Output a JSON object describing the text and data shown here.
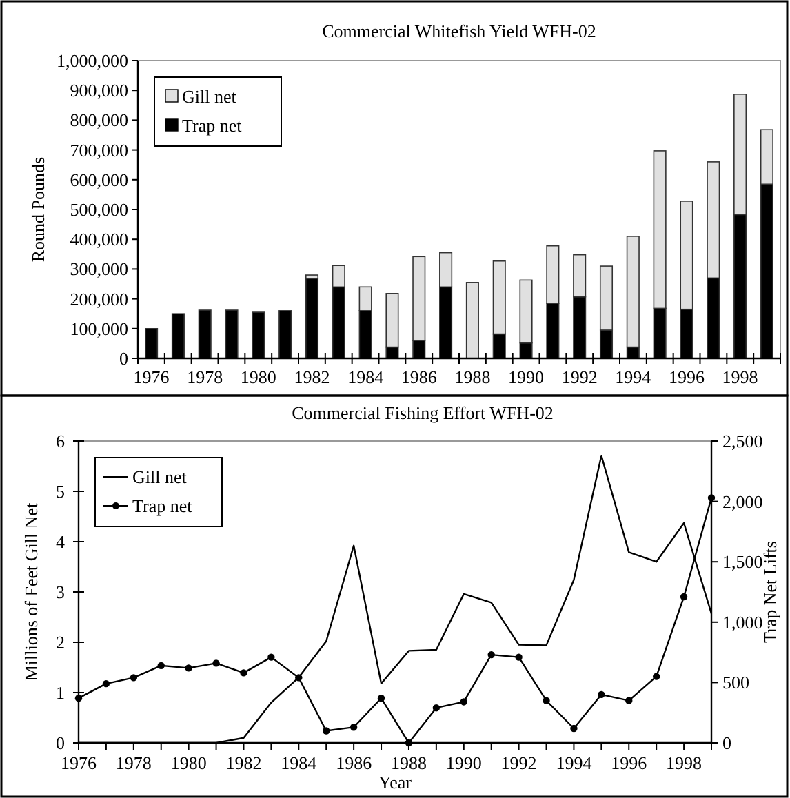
{
  "chart_data": [
    {
      "type": "bar",
      "title": "Commercial Whitefish Yield WFH-02",
      "ylabel": "Round Pounds",
      "stacked": true,
      "legend": "top left",
      "categories": [
        "1976",
        null,
        "1978",
        null,
        "1980",
        null,
        "1982",
        null,
        "1984",
        null,
        "1986",
        null,
        "1988",
        null,
        "1990",
        null,
        "1992",
        null,
        "1994",
        null,
        "1996",
        null,
        "1998",
        null
      ],
      "ylim": [
        0,
        1000000
      ],
      "yticks": [
        {
          "value": 0,
          "label": "0"
        },
        {
          "value": 100000,
          "label": "100,000"
        },
        {
          "value": 200000,
          "label": "200,000"
        },
        {
          "value": 300000,
          "label": "300,000"
        },
        {
          "value": 400000,
          "label": "400,000"
        },
        {
          "value": 500000,
          "label": "500,000"
        },
        {
          "value": 600000,
          "label": "600,000"
        },
        {
          "value": 700000,
          "label": "700,000"
        },
        {
          "value": 800000,
          "label": "800,000"
        },
        {
          "value": 900000,
          "label": "900,000"
        },
        {
          "value": 1000000,
          "label": "1,000,000"
        }
      ],
      "series": [
        {
          "name": "Trap net",
          "color": "#000000",
          "values": [
            100000,
            150000,
            162000,
            162000,
            155000,
            160000,
            268000,
            240000,
            160000,
            38000,
            60000,
            240000,
            0,
            82000,
            52000,
            185000,
            207000,
            95000,
            38000,
            168000,
            165000,
            270000,
            483000,
            585000
          ]
        },
        {
          "name": "Gill net",
          "color": "#e0e0e0",
          "values": [
            0,
            0,
            0,
            0,
            0,
            0,
            12000,
            72000,
            80000,
            180000,
            282000,
            115000,
            255000,
            245000,
            211000,
            193000,
            141000,
            215000,
            372000,
            529000,
            363000,
            390000,
            404000,
            183000
          ]
        }
      ]
    },
    {
      "type": "line",
      "title": "Commercial Fishing Effort WFH-02",
      "xlabel": "Year",
      "ylabel": "Millions of Feet Gill Net",
      "y2label": "Trap Net Lifts",
      "legend": "top left",
      "x": [
        1976,
        1977,
        1978,
        1979,
        1980,
        1981,
        1982,
        1983,
        1984,
        1985,
        1986,
        1987,
        1988,
        1989,
        1990,
        1991,
        1992,
        1993,
        1994,
        1995,
        1996,
        1997,
        1998,
        1999
      ],
      "xlim": [
        1976,
        1999
      ],
      "xticks": [
        1976,
        {
          "value": 1977,
          "label": null
        },
        1978,
        {
          "value": 1979,
          "label": null
        },
        1980,
        {
          "value": 1981,
          "label": null
        },
        1982,
        {
          "value": 1983,
          "label": null
        },
        1984,
        {
          "value": 1985,
          "label": null
        },
        1986,
        {
          "value": 1987,
          "label": null
        },
        1988,
        {
          "value": 1989,
          "label": null
        },
        1990,
        {
          "value": 1991,
          "label": null
        },
        1992,
        {
          "value": 1993,
          "label": null
        },
        1994,
        {
          "value": 1995,
          "label": null
        },
        1996,
        {
          "value": 1997,
          "label": null
        },
        1998,
        {
          "value": 1999,
          "label": null
        }
      ],
      "ylim": [
        0,
        6
      ],
      "yticks": [
        0,
        1,
        2,
        3,
        4,
        5,
        6
      ],
      "y2lim": [
        0,
        2500
      ],
      "y2ticks": [
        {
          "value": 0,
          "label": "0"
        },
        {
          "value": 500,
          "label": "500"
        },
        {
          "value": 1000,
          "label": "1,000"
        },
        {
          "value": 1500,
          "label": "1,500"
        },
        {
          "value": 2000,
          "label": "2,000"
        },
        {
          "value": 2500,
          "label": "2,500"
        }
      ],
      "series": [
        {
          "name": "Gill net",
          "color": "#000000",
          "marker": "none",
          "values": [
            0,
            0,
            0,
            0,
            0,
            0,
            0.1,
            0.8,
            1.3,
            2.02,
            3.92,
            1.18,
            1.83,
            1.85,
            2.96,
            2.79,
            1.95,
            1.94,
            3.24,
            5.71,
            3.79,
            3.6,
            4.37,
            2.57
          ]
        },
        {
          "name": "Trap net",
          "color": "#000000",
          "marker": "circle",
          "axis": "y2",
          "values": [
            370,
            490,
            540,
            640,
            620,
            660,
            580,
            710,
            540,
            100,
            130,
            370,
            0,
            290,
            340,
            730,
            710,
            350,
            120,
            400,
            350,
            550,
            1210,
            2030
          ]
        }
      ]
    }
  ]
}
